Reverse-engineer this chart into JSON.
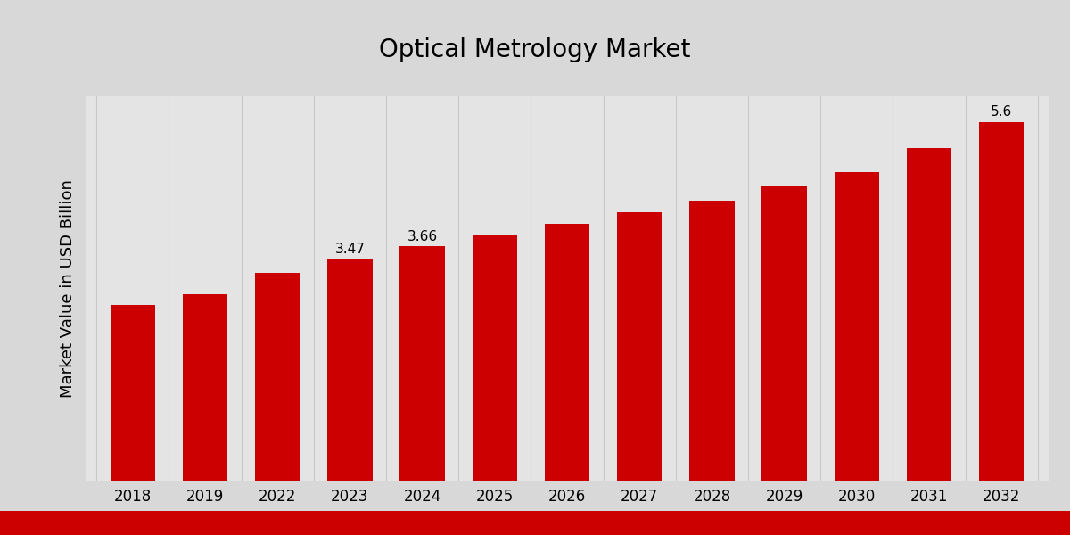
{
  "title": "Optical Metrology Market",
  "ylabel": "Market Value in USD Billion",
  "categories": [
    "2018",
    "2019",
    "2022",
    "2023",
    "2024",
    "2025",
    "2026",
    "2027",
    "2028",
    "2029",
    "2030",
    "2031",
    "2032"
  ],
  "values": [
    2.75,
    2.92,
    3.25,
    3.47,
    3.66,
    3.84,
    4.02,
    4.2,
    4.38,
    4.6,
    4.82,
    5.2,
    5.6
  ],
  "bar_color": "#cc0000",
  "labeled_bars": {
    "2023": "3.47",
    "2024": "3.66",
    "2032": "5.6"
  },
  "ylim": [
    0,
    6.0
  ],
  "title_fontsize": 20,
  "label_fontsize": 11,
  "tick_fontsize": 12,
  "ylabel_fontsize": 13,
  "grid_color": "#c8c8c8",
  "bg_color": "#e4e4e4",
  "fig_bg_color": "#d8d8d8",
  "footer_color": "#cc0000",
  "bar_width": 0.62
}
